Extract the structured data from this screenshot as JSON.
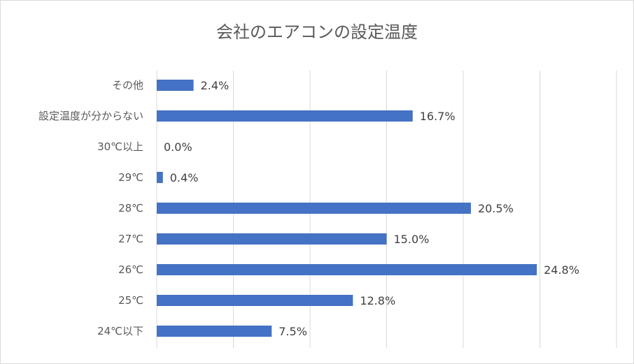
{
  "chart_data": {
    "type": "bar",
    "orientation": "horizontal",
    "title": "会社のエアコンの設定温度",
    "categories": [
      "その他",
      "設定温度が分からない",
      "30℃以上",
      "29℃",
      "28℃",
      "27℃",
      "26℃",
      "25℃",
      "24℃以下"
    ],
    "values": [
      2.4,
      16.7,
      0.0,
      0.4,
      20.5,
      15.0,
      24.8,
      12.8,
      7.5
    ],
    "data_labels": [
      "2.4%",
      "16.7%",
      "0.0%",
      "0.4%",
      "20.5%",
      "15.0%",
      "24.8%",
      "12.8%",
      "7.5%"
    ],
    "xlim": [
      0,
      30
    ],
    "x_gridlines": [
      0,
      5,
      10,
      15,
      20,
      25,
      30
    ],
    "grid": true,
    "legend": "none",
    "bar_color": "#4472c4"
  }
}
